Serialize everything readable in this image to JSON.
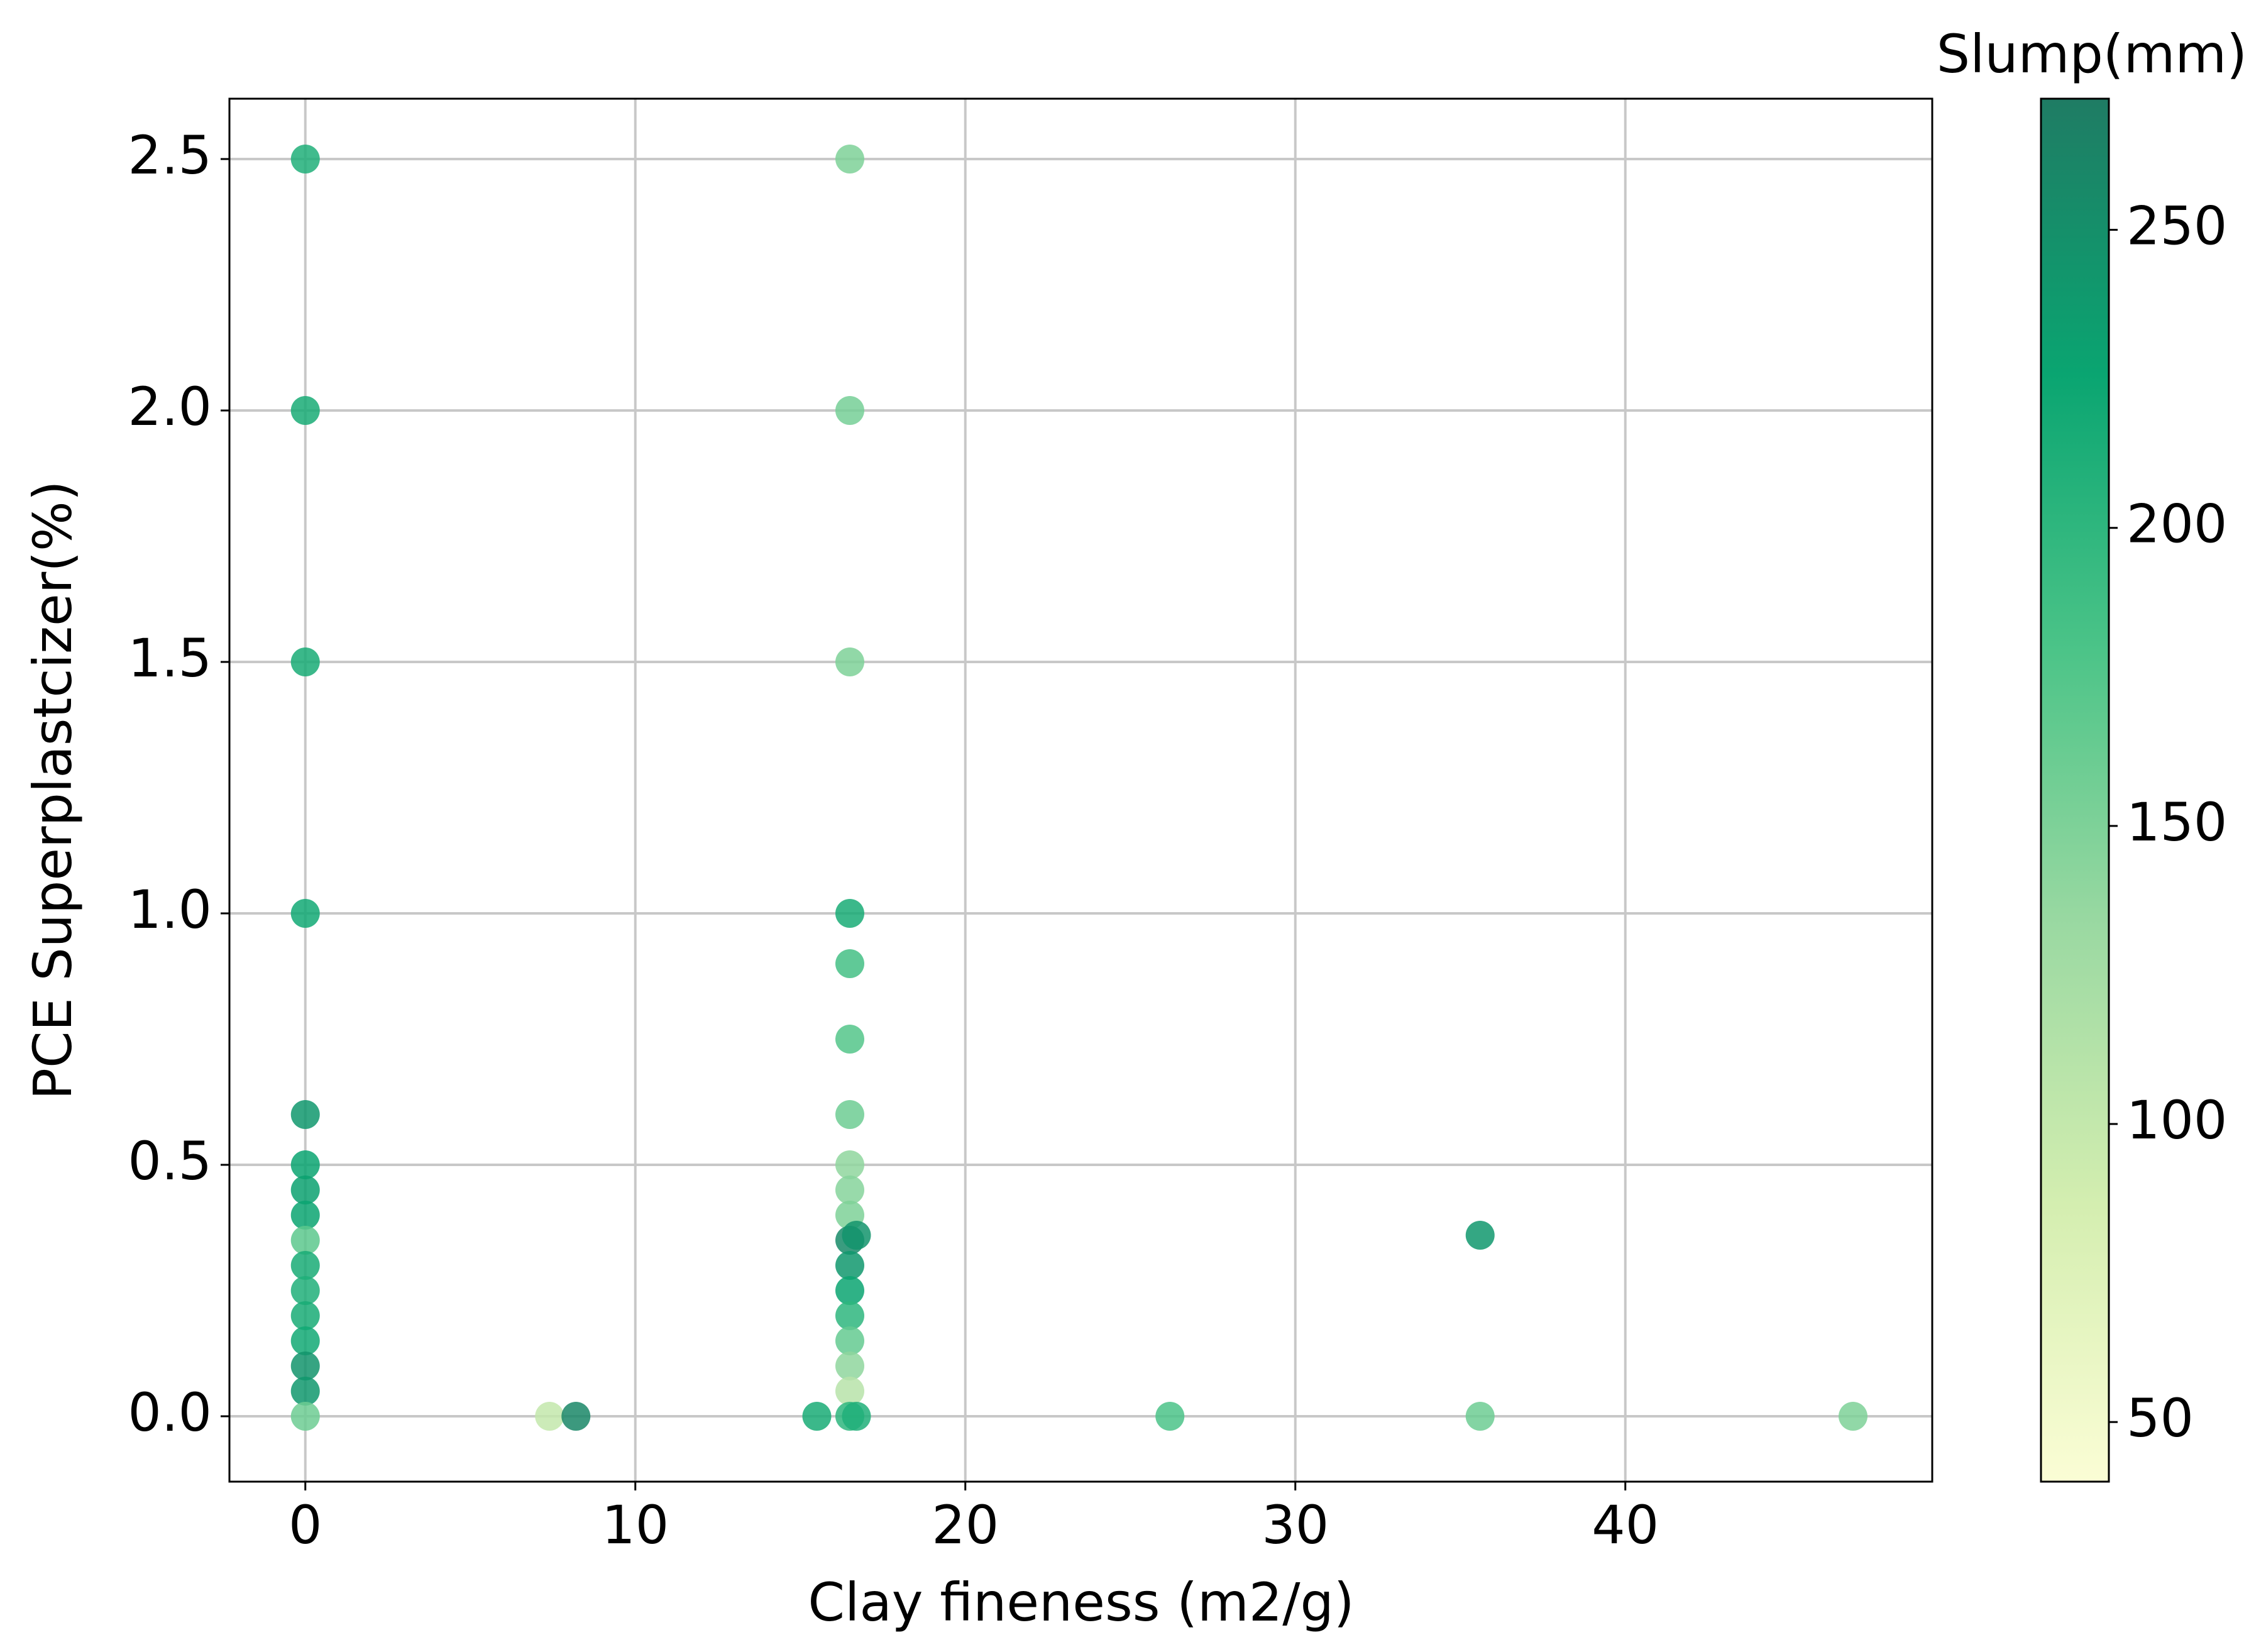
{
  "chart_data": {
    "type": "scatter",
    "x_label": "Clay fineness (m2/g)",
    "y_label": "PCE Superplastcizer(%)",
    "colorbar_label": "Slump(mm)",
    "x": [
      0,
      0,
      0,
      0,
      0,
      0,
      0,
      0,
      0,
      0,
      0,
      0,
      0,
      0,
      0,
      0,
      7.4,
      8.2,
      15.5,
      16.5,
      16.5,
      16.5,
      16.5,
      16.5,
      16.5,
      16.5,
      16.5,
      16.5,
      16.5,
      16.5,
      16.5,
      16.5,
      16.5,
      16.5,
      16.5,
      16.5,
      16.5,
      16.7,
      16.7,
      26.2,
      35.6,
      35.6,
      46.9
    ],
    "y": [
      2.5,
      2.0,
      1.5,
      1.0,
      0.6,
      0.5,
      0.45,
      0.4,
      0.35,
      0.3,
      0.25,
      0.2,
      0.15,
      0.1,
      0.05,
      0,
      0,
      0,
      0,
      2.5,
      2.0,
      1.5,
      1.0,
      0.9,
      0.75,
      0.6,
      0.5,
      0.45,
      0.4,
      0.35,
      0.3,
      0.25,
      0.2,
      0.15,
      0.1,
      0.05,
      0,
      0.36,
      0,
      0,
      0.36,
      0,
      0
    ],
    "color_values": [
      210,
      215,
      215,
      220,
      240,
      225,
      230,
      225,
      170,
      215,
      210,
      215,
      220,
      245,
      240,
      160,
      100,
      260,
      215,
      150,
      155,
      150,
      215,
      185,
      175,
      160,
      140,
      145,
      150,
      255,
      240,
      225,
      200,
      165,
      140,
      110,
      200,
      245,
      210,
      180,
      240,
      160,
      150
    ],
    "colormap": [
      "#fbfdd5",
      "#d4eeb0",
      "#9bd9a2",
      "#4cc488",
      "#0aa571",
      "#1f7c64"
    ],
    "xlim": [
      -2.3,
      49.3
    ],
    "xticks": [
      0,
      10,
      20,
      30,
      40
    ],
    "ylim": [
      -0.13,
      2.62
    ],
    "yticks": [
      {
        "value": 0,
        "label": "0.0"
      },
      0.5,
      {
        "value": 1,
        "label": "1.0"
      },
      1.5,
      {
        "value": 2,
        "label": "2.0"
      },
      2.5
    ],
    "clim": [
      40,
      272
    ],
    "cticks": [
      50,
      100,
      150,
      200,
      250
    ],
    "grid": true
  }
}
